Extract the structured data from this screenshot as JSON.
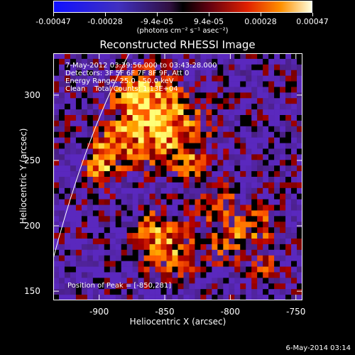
{
  "colorbar": {
    "ticks": [
      "-0.00047",
      "-0.00028",
      "-9.4e-05",
      "9.4e-05",
      "0.00028",
      "0.00047"
    ],
    "units": "(photons cm⁻² s⁻¹ asec⁻²)"
  },
  "image": {
    "title": "Reconstructed RHESSI Image",
    "info_lines": [
      "7-May-2012 03:39:56.000 to 03:43:28.000",
      "Detectors: 3F 5F 6F 7F 8F 9F, Att 0",
      "Energy Range: 25.0 - 50.0 keV",
      "Clean    Total Counts: 1.13E+04"
    ],
    "peak_text": "Position of Peak = [-850,281]",
    "footer": "6-May-2014 03:14"
  },
  "chart_data": {
    "type": "heatmap",
    "title": "Reconstructed RHESSI Image",
    "xlabel": "Heliocentric X (arcsec)",
    "ylabel": "Heliocentric Y (arcsec)",
    "xlim": [
      -935,
      -745
    ],
    "ylim": [
      143,
      332
    ],
    "xticks": [
      "-900",
      "-850",
      "-800",
      "-750"
    ],
    "yticks": [
      "150",
      "200",
      "250",
      "300"
    ],
    "colorbar_range": [
      -0.00047,
      0.00047
    ],
    "peak_position": [
      -850,
      281
    ],
    "colors": {
      "low": "#1a1aff",
      "mid_low": "#5a1fa0",
      "mid": "#000000",
      "mid_high": "#c02000",
      "high": "#ffff60"
    }
  }
}
